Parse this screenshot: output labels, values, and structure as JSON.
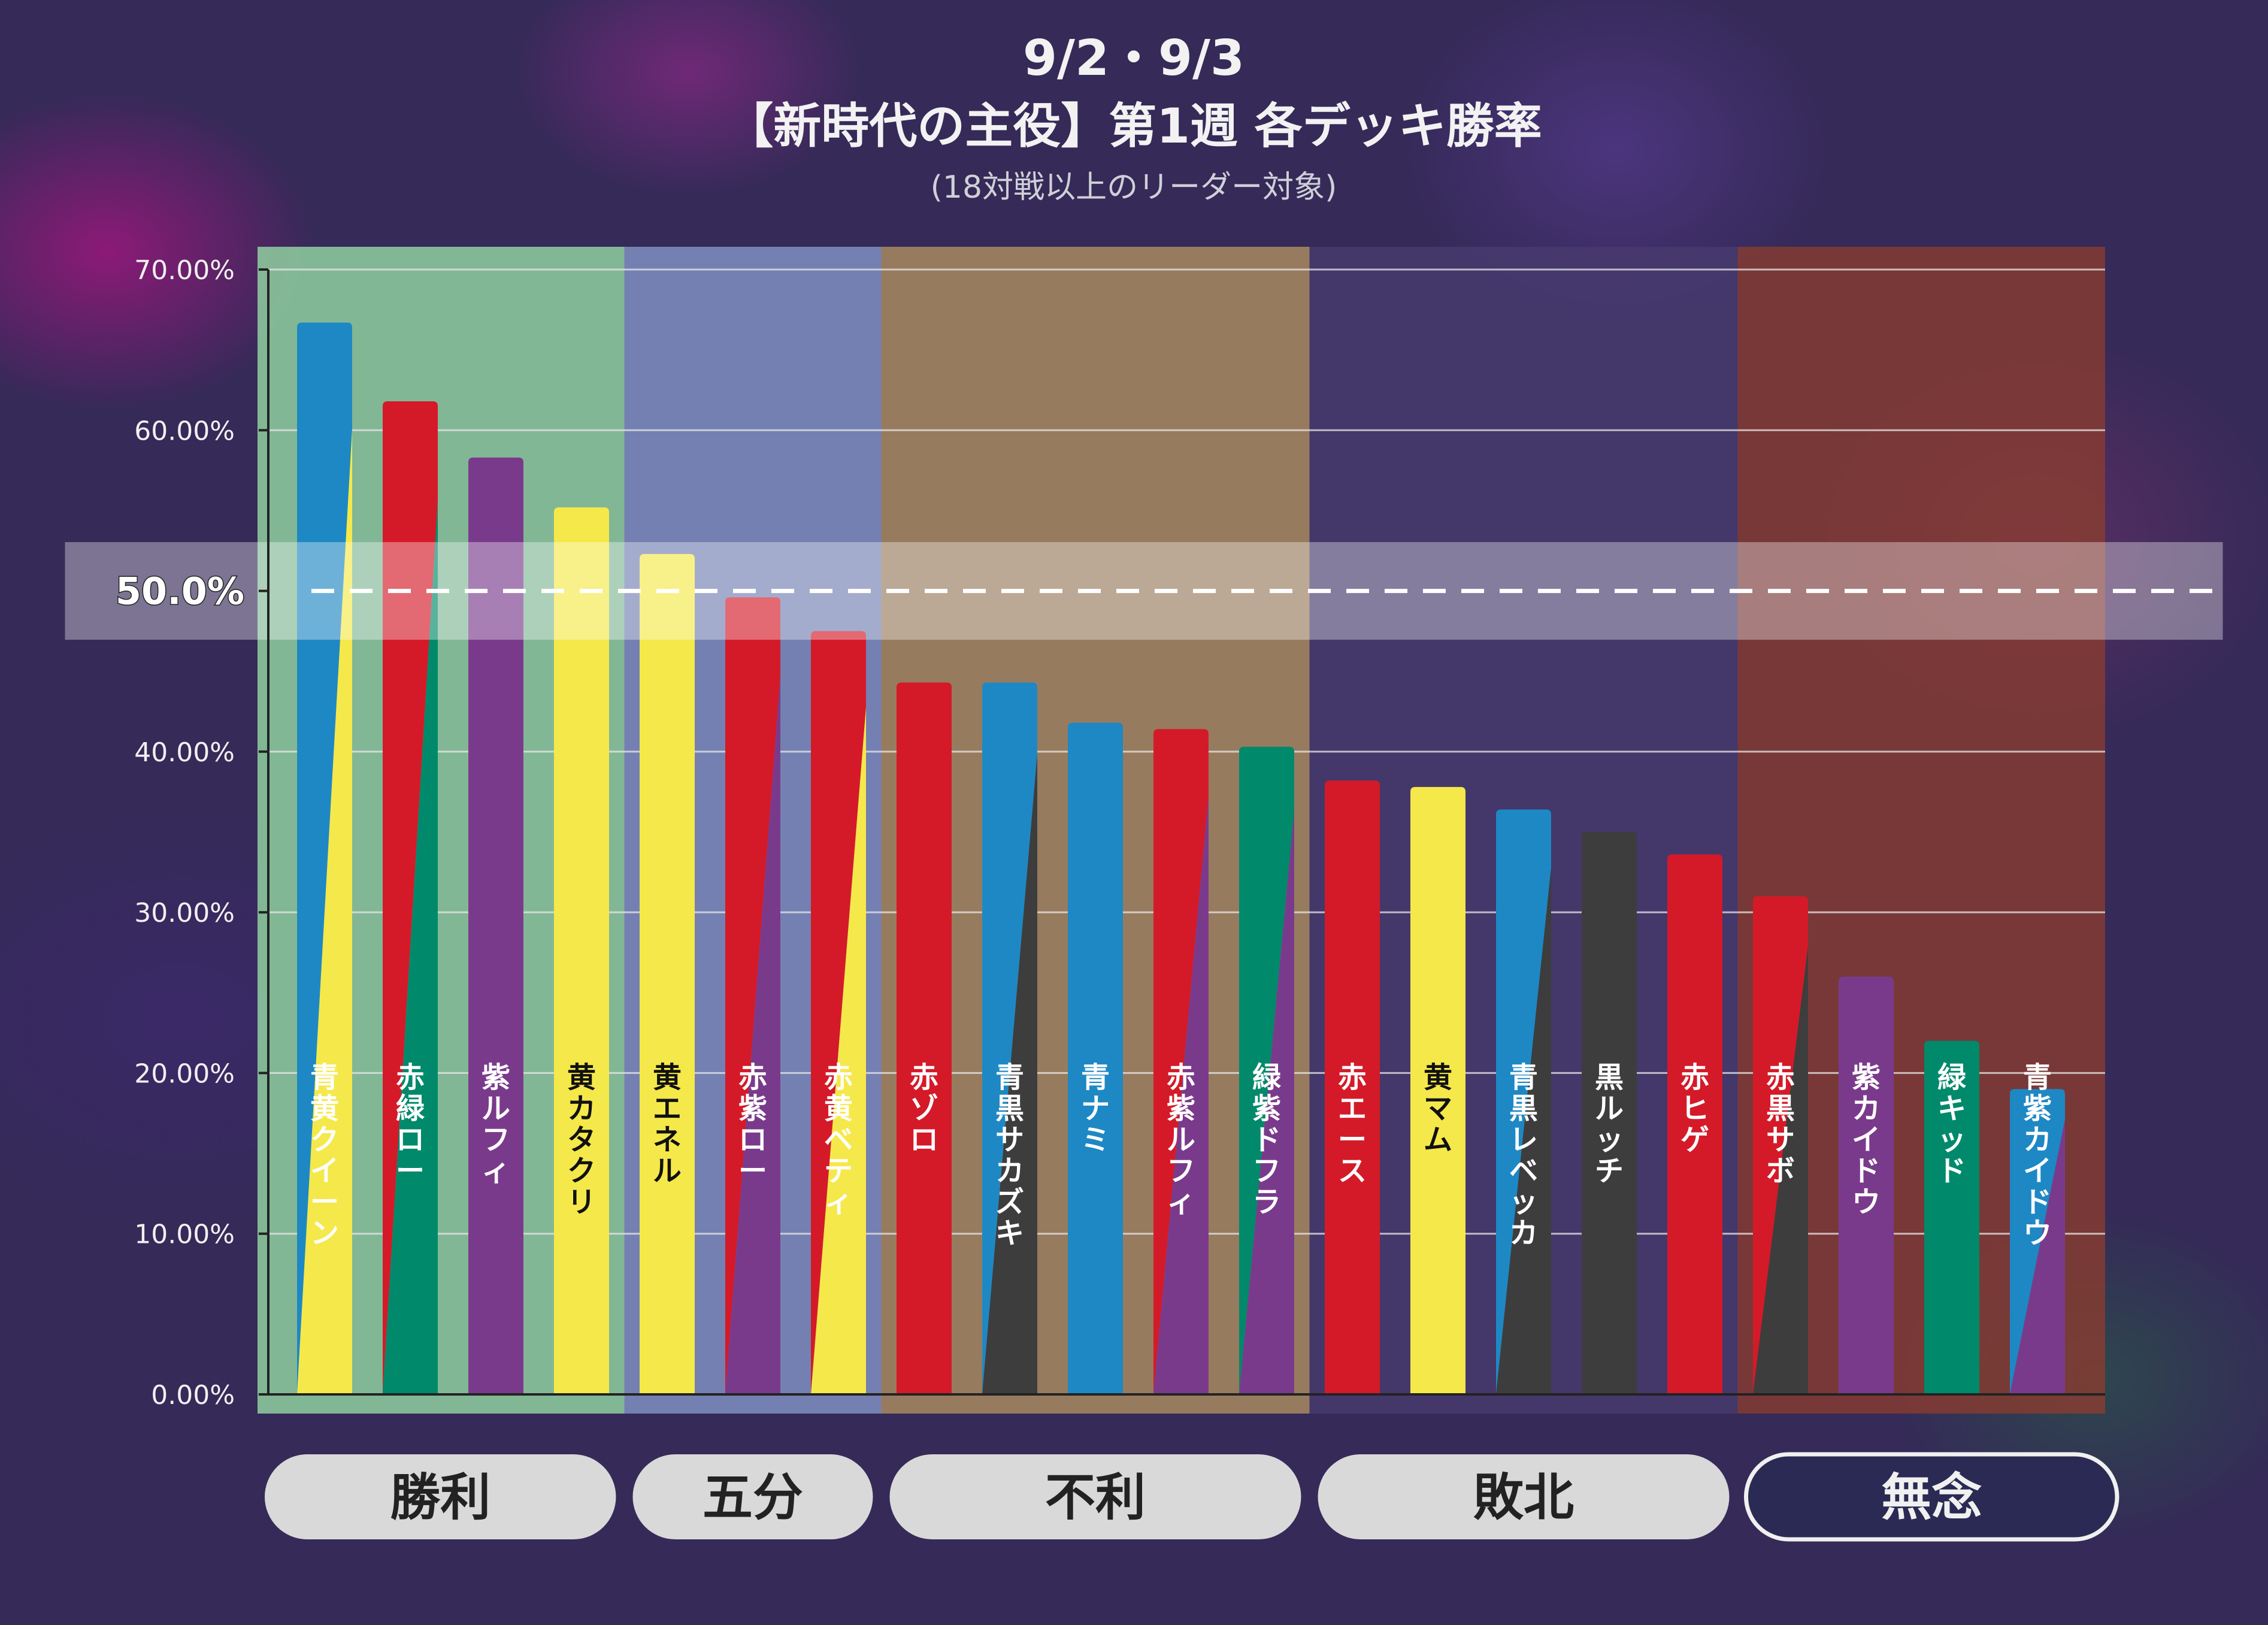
{
  "header": {
    "date": "9/2・9/3",
    "title": "【新時代の主役】第1週 各デッキ勝率",
    "subtitle": "(18対戦以上のリーダー対象)"
  },
  "reference_line": {
    "label": "50.0%",
    "value": 50.0
  },
  "colors": {
    "red": "#d41a28",
    "blue": "#1e88c4",
    "yellow": "#f5e84a",
    "purple": "#7a3a8c",
    "black": "#3d3d3d",
    "green": "#00896a"
  },
  "zones": [
    {
      "label": "勝利",
      "fill": "#8fd0a0",
      "opacity": 0.85,
      "button_style": "filled"
    },
    {
      "label": "五分",
      "fill": "#8a9ed0",
      "opacity": 0.75,
      "button_style": "filled"
    },
    {
      "label": "不利",
      "fill": "#b09060",
      "opacity": 0.8,
      "button_style": "filled"
    },
    {
      "label": "敗北",
      "fill": "#4a3c70",
      "opacity": 0.75,
      "button_style": "filled"
    },
    {
      "label": "無念",
      "fill": "#8a3c30",
      "opacity": 0.8,
      "button_style": "outline"
    }
  ],
  "chart_data": {
    "type": "bar",
    "ylim": [
      0,
      70
    ],
    "yticks": [
      "0.00%",
      "10.00%",
      "20.00%",
      "30.00%",
      "40.00%",
      "50.00%",
      "60.00%",
      "70.00%"
    ],
    "categories": [
      "青黄クイーン",
      "赤緑ロー",
      "紫ルフィ",
      "黄カタクリ",
      "黄エネル",
      "赤紫ロー",
      "赤黄ベティ",
      "赤ゾロ",
      "青黒サカズキ",
      "青ナミ",
      "赤紫ルフィ",
      "緑紫ドフラ",
      "赤エース",
      "黄マム",
      "青黒レベッカ",
      "黒ルッチ",
      "赤ヒゲ",
      "赤黒サボ",
      "紫カイドウ",
      "緑キッド",
      "青紫カイドウ"
    ],
    "values": [
      66.7,
      61.8,
      58.3,
      55.2,
      52.3,
      49.6,
      47.5,
      44.3,
      44.3,
      41.8,
      41.4,
      40.3,
      38.2,
      37.8,
      36.4,
      35.0,
      33.6,
      31.0,
      26.0,
      22.0,
      19.0
    ],
    "bar_colors": [
      [
        "blue",
        "yellow"
      ],
      [
        "red",
        "green"
      ],
      [
        "purple"
      ],
      [
        "yellow"
      ],
      [
        "yellow"
      ],
      [
        "red",
        "purple"
      ],
      [
        "red",
        "yellow"
      ],
      [
        "red"
      ],
      [
        "blue",
        "black"
      ],
      [
        "blue"
      ],
      [
        "red",
        "purple"
      ],
      [
        "green",
        "purple"
      ],
      [
        "red"
      ],
      [
        "yellow"
      ],
      [
        "blue",
        "black"
      ],
      [
        "black"
      ],
      [
        "red"
      ],
      [
        "red",
        "black"
      ],
      [
        "purple"
      ],
      [
        "green"
      ],
      [
        "blue",
        "purple"
      ]
    ],
    "zone_index": [
      0,
      0,
      0,
      0,
      1,
      1,
      1,
      2,
      2,
      2,
      2,
      2,
      3,
      3,
      3,
      3,
      3,
      4,
      4,
      4,
      4
    ],
    "grid": true
  }
}
